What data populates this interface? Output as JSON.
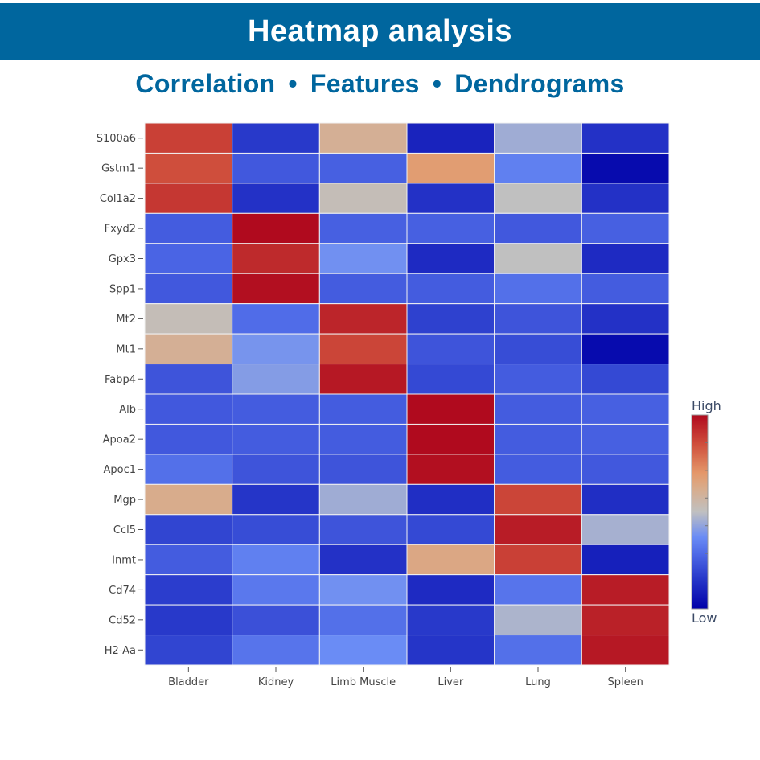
{
  "header": {
    "title": "Heatmap analysis",
    "subtitle_parts": [
      "Correlation",
      "Features",
      "Dendrograms"
    ],
    "separator": "•"
  },
  "colors": {
    "banner": "#00669e",
    "subtitle": "#00669e",
    "grid": "#f2f2f2"
  },
  "chart_data": {
    "type": "heatmap",
    "title": "",
    "xlabel": "",
    "ylabel": "",
    "x_categories": [
      "Bladder",
      "Kidney",
      "Limb Muscle",
      "Liver",
      "Lung",
      "Spleen"
    ],
    "y_categories": [
      "S100a6",
      "Gstm1",
      "Col1a2",
      "Fxyd2",
      "Gpx3",
      "Spp1",
      "Mt2",
      "Mt1",
      "Fabp4",
      "Alb",
      "Apoa2",
      "Apoc1",
      "Mgp",
      "Ccl5",
      "Inmt",
      "Cd74",
      "Cd52",
      "H2-Aa"
    ],
    "value_range": [
      0,
      1
    ],
    "values": [
      [
        0.88,
        0.16,
        0.6,
        0.1,
        0.45,
        0.14
      ],
      [
        0.85,
        0.24,
        0.26,
        0.68,
        0.34,
        0.03
      ],
      [
        0.9,
        0.14,
        0.52,
        0.14,
        0.5,
        0.14
      ],
      [
        0.25,
        1.0,
        0.26,
        0.26,
        0.24,
        0.26
      ],
      [
        0.27,
        0.93,
        0.38,
        0.12,
        0.5,
        0.12
      ],
      [
        0.24,
        0.99,
        0.25,
        0.25,
        0.3,
        0.25
      ],
      [
        0.52,
        0.29,
        0.94,
        0.18,
        0.23,
        0.14
      ],
      [
        0.6,
        0.39,
        0.87,
        0.23,
        0.21,
        0.03
      ],
      [
        0.23,
        0.41,
        0.97,
        0.2,
        0.25,
        0.2
      ],
      [
        0.24,
        0.25,
        0.25,
        1.0,
        0.25,
        0.26
      ],
      [
        0.24,
        0.25,
        0.25,
        1.0,
        0.25,
        0.26
      ],
      [
        0.3,
        0.23,
        0.23,
        0.99,
        0.25,
        0.24
      ],
      [
        0.62,
        0.15,
        0.45,
        0.13,
        0.87,
        0.13
      ],
      [
        0.19,
        0.21,
        0.23,
        0.2,
        0.96,
        0.46
      ],
      [
        0.25,
        0.34,
        0.14,
        0.64,
        0.88,
        0.09
      ],
      [
        0.17,
        0.32,
        0.38,
        0.12,
        0.31,
        0.96
      ],
      [
        0.16,
        0.22,
        0.3,
        0.16,
        0.47,
        0.95
      ],
      [
        0.19,
        0.31,
        0.37,
        0.15,
        0.3,
        0.97
      ]
    ],
    "colorscale": [
      [
        0.0,
        "#0000a8"
      ],
      [
        0.15,
        "#2535c8"
      ],
      [
        0.28,
        "#4d68e6"
      ],
      [
        0.37,
        "#6a8cf5"
      ],
      [
        0.5,
        "#c0c0c0"
      ],
      [
        0.62,
        "#d8ac8c"
      ],
      [
        0.7,
        "#e4986a"
      ],
      [
        0.85,
        "#cf4e3c"
      ],
      [
        1.0,
        "#b00a1e"
      ]
    ],
    "colorbar": {
      "high_label": "High",
      "low_label": "Low",
      "placement": "right"
    },
    "grid": true,
    "legend": "none"
  }
}
